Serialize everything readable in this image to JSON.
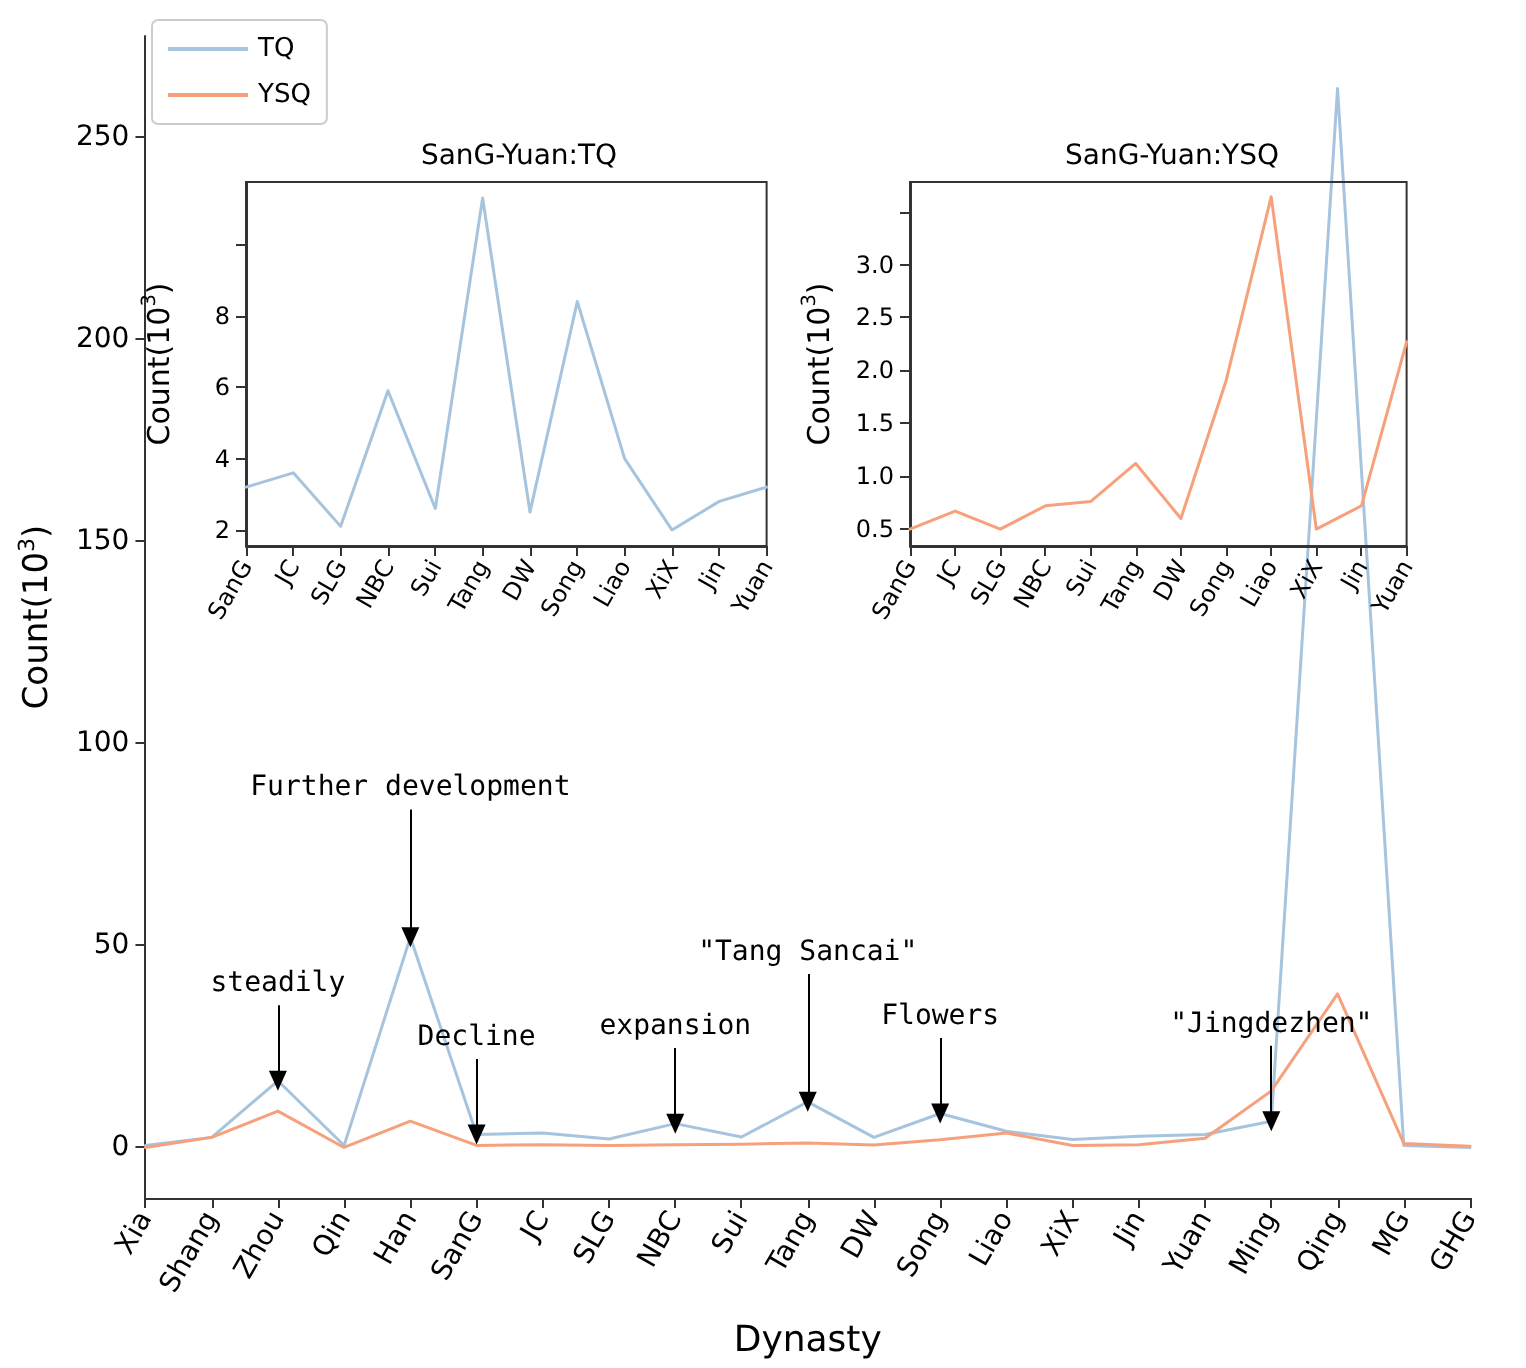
{
  "chart_data": [
    {
      "type": "line",
      "xlabel": "Dynasty",
      "ylabel": "Count(10$^{3}$)",
      "categories": [
        "Xia",
        "Shang",
        "Zhou",
        "Qin",
        "Han",
        "SanG",
        "JC",
        "SLG",
        "NBC",
        "Sui",
        "Tang",
        "DW",
        "Song",
        "Liao",
        "XiX",
        "Jin",
        "Yuan",
        "Ming",
        "Qing",
        "MG",
        "GHG"
      ],
      "series": [
        {
          "name": "TQ",
          "color": "#a6c4de",
          "values": [
            0.5,
            2.5,
            16.5,
            0.5,
            52,
            3.2,
            3.6,
            2.1,
            5.9,
            2.6,
            11.3,
            2.5,
            8.4,
            4.0,
            2.0,
            2.8,
            3.2,
            6.5,
            262,
            0.5,
            0
          ]
        },
        {
          "name": "YSQ",
          "color": "#f7a07c",
          "values": [
            0,
            2.5,
            9,
            0,
            6.5,
            0.5,
            0.7,
            0.5,
            0.7,
            0.8,
            1.1,
            0.6,
            1.9,
            3.6,
            0.5,
            0.7,
            2.3,
            14,
            38,
            1,
            0.3
          ]
        }
      ],
      "ylim": [
        -12.5,
        275
      ],
      "yticks": [
        0,
        50,
        100,
        150,
        200,
        250
      ],
      "grid": false,
      "legend": "top left",
      "marker": "none",
      "annotations": [
        {
          "text": "steadily",
          "x": "Zhou",
          "y": 16.5
        },
        {
          "text": "Further development",
          "x": "Han",
          "y": 52
        },
        {
          "text": "Decline",
          "x": "SanG",
          "y": 3.2
        },
        {
          "text": "expansion",
          "x": "NBC",
          "y": 5.9
        },
        {
          "text": "\"Tang Sancai\"",
          "x": "Tang",
          "y": 11.3
        },
        {
          "text": "Flowers",
          "x": "Song",
          "y": 8.4
        },
        {
          "text": "\"Jingdezhen\"",
          "x": "Ming",
          "y": 6.5
        }
      ]
    },
    {
      "type": "line",
      "title": "SanG-Yuan:TQ",
      "ylabel": "Count(10$^{3}$)",
      "categories": [
        "SanG",
        "JC",
        "SLG",
        "NBC",
        "Sui",
        "Tang",
        "DW",
        "Song",
        "Liao",
        "XiX",
        "Jin",
        "Yuan"
      ],
      "series": [
        {
          "color": "#a6c4de",
          "values": [
            3.2,
            3.6,
            2.1,
            5.9,
            2.6,
            11.3,
            2.5,
            8.4,
            4.0,
            2.0,
            2.8,
            3.2
          ]
        }
      ],
      "ylim": [
        1.55,
        11.75
      ],
      "yticks": [
        2,
        4,
        6,
        8,
        {
          "value": 10,
          "label": null
        }
      ],
      "grid": false,
      "marker": "none"
    },
    {
      "type": "line",
      "title": "SanG-Yuan:YSQ",
      "ylabel": "Count(10$^{3}$)",
      "categories": [
        "SanG",
        "JC",
        "SLG",
        "NBC",
        "Sui",
        "Tang",
        "DW",
        "Song",
        "Liao",
        "XiX",
        "Jin",
        "Yuan"
      ],
      "series": [
        {
          "color": "#f7a07c",
          "values": [
            0.5,
            0.67,
            0.5,
            0.72,
            0.76,
            1.12,
            0.6,
            1.9,
            3.64,
            0.5,
            0.72,
            2.27
          ]
        }
      ],
      "ylim": [
        0.34,
        3.78
      ],
      "yticks": [
        {
          "value": 0.5,
          "label": "0.5"
        },
        {
          "value": 1,
          "label": "1.0"
        },
        {
          "value": 1.5,
          "label": "1.5"
        },
        {
          "value": 2,
          "label": "2.0"
        },
        {
          "value": 2.5,
          "label": "2.5"
        },
        {
          "value": 3,
          "label": "3.0"
        },
        {
          "value": 3.5,
          "label": null
        }
      ],
      "grid": false,
      "marker": "none"
    }
  ]
}
